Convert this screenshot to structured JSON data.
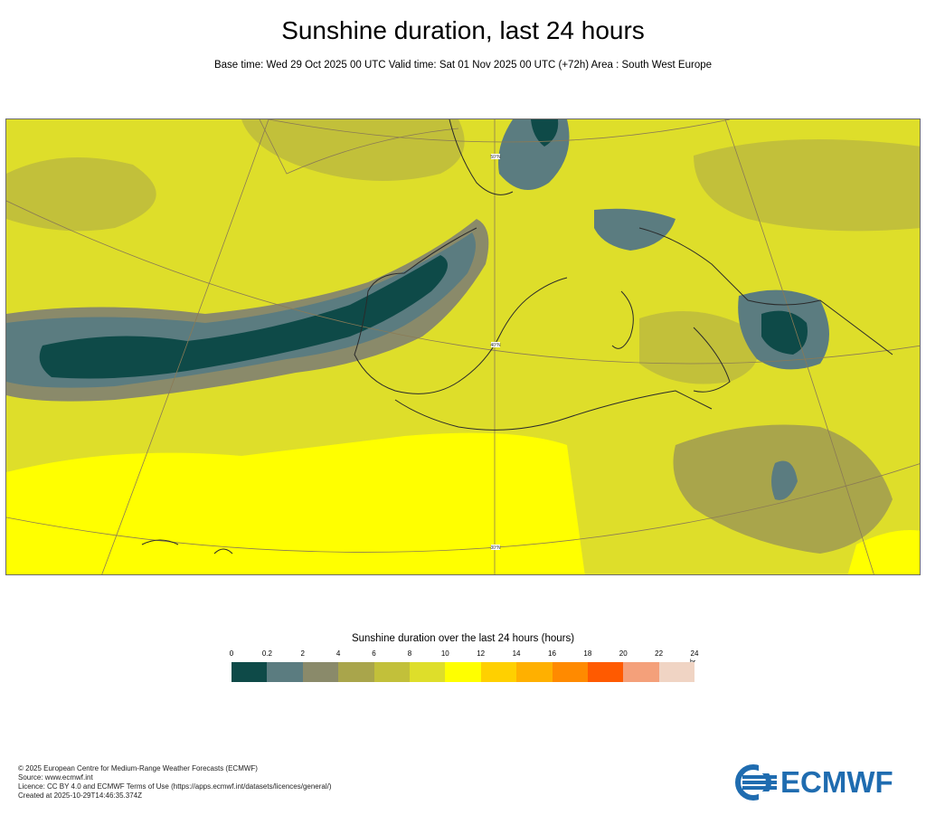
{
  "title": "Sunshine duration, last 24 hours",
  "subtitle": "Base time: Wed 29 Oct 2025 00 UTC Valid time: Sat 01 Nov 2025 00 UTC (+72h) Area : South West Europe",
  "map": {
    "region": "South West Europe",
    "lat_labels": [
      "50°N",
      "40°N",
      "30°N"
    ]
  },
  "legend": {
    "title": "Sunshine duration over the last 24 hours (hours)",
    "unit": "hr",
    "ticks": [
      "0",
      "0.2",
      "2",
      "4",
      "6",
      "8",
      "10",
      "12",
      "14",
      "16",
      "18",
      "20",
      "22",
      "24"
    ],
    "colors": [
      "#0e4a48",
      "#5b7c80",
      "#8a8a6a",
      "#a9a54b",
      "#c2c03a",
      "#dede2a",
      "#ffff00",
      "#ffd000",
      "#ffb000",
      "#ff8a00",
      "#ff5a00",
      "#f4a07a",
      "#f0d4c4"
    ]
  },
  "footer": {
    "line1": "© 2025 European Centre for Medium-Range Weather Forecasts (ECMWF)",
    "line2": "Source: www.ecmwf.int",
    "line3": "Licence: CC BY 4.0 and ECMWF Terms of Use (https://apps.ecmwf.int/datasets/licences/general/)",
    "line4": "Created at 2025-10-29T14:46:35.374Z"
  },
  "logo": {
    "text": "ECMWF",
    "color": "#1f6cb0"
  }
}
